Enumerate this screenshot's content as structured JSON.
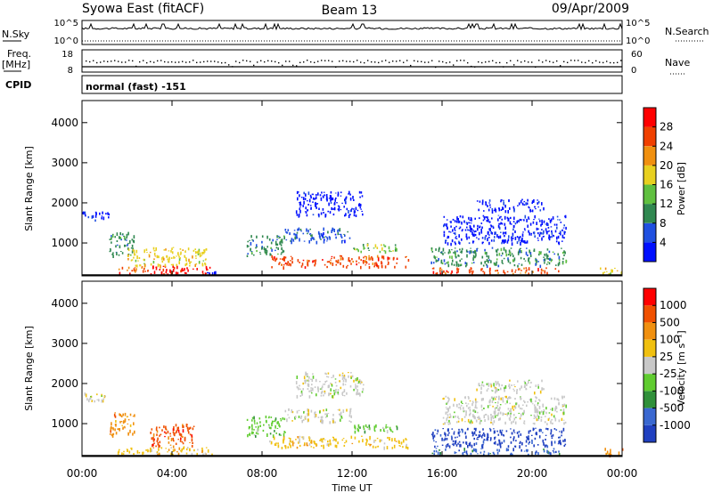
{
  "header": {
    "station": "Syowa East (fitACF)",
    "beam": "Beam 13",
    "date": "09/Apr/2009"
  },
  "status_panels": {
    "nsky_label": "N.Sky",
    "nsky_ticks": [
      "10^5",
      "10^0"
    ],
    "nsearch_label": "N.Search",
    "nsearch_ticks": [
      "10^5",
      "10^0"
    ],
    "freq_label_line1": "Freq.",
    "freq_label_line2": "[MHz]",
    "freq_ticks": [
      "18",
      "8"
    ],
    "nave_label": "Nave",
    "nave_ticks": [
      "60",
      "0"
    ],
    "cpid_label": "CPID",
    "cpid_text": "normal (fast) -151"
  },
  "chart_data": [
    {
      "type": "heatmap",
      "panel": "power",
      "ylabel": "Slant Range [km]",
      "y_ticks": [
        1000,
        2000,
        3000,
        4000
      ],
      "ylim": [
        180,
        4550
      ],
      "x_ticks": [
        "00:00",
        "04:00",
        "08:00",
        "12:00",
        "16:00",
        "20:00",
        "00:00"
      ],
      "xlim_hours": [
        0,
        24
      ],
      "colorbar": {
        "label": "Power [dB]",
        "levels": [
          "4",
          "8",
          "12",
          "16",
          "20",
          "24",
          "28"
        ],
        "colors": [
          "#0010ff",
          "#2050e0",
          "#308850",
          "#60c040",
          "#e8d020",
          "#f09010",
          "#f04000",
          "#ff0000"
        ]
      },
      "echo_regions": [
        {
          "t0": 0.0,
          "t1": 1.3,
          "r0": 1580,
          "r1": 1800,
          "level": 0
        },
        {
          "t0": 1.2,
          "t1": 2.3,
          "r0": 700,
          "r1": 1300,
          "level": 2
        },
        {
          "t0": 1.5,
          "t1": 3.0,
          "r0": 250,
          "r1": 420,
          "level": 6
        },
        {
          "t0": 3.0,
          "t1": 5.8,
          "r0": 240,
          "r1": 440,
          "level": 7
        },
        {
          "t0": 2.0,
          "t1": 5.5,
          "r0": 450,
          "r1": 900,
          "level": 4
        },
        {
          "t0": 5.5,
          "t1": 6.0,
          "r0": 230,
          "r1": 300,
          "level": 0
        },
        {
          "t0": 7.3,
          "t1": 9.0,
          "r0": 700,
          "r1": 1200,
          "level": 2
        },
        {
          "t0": 8.3,
          "t1": 14.5,
          "r0": 420,
          "r1": 700,
          "level": 6
        },
        {
          "t0": 9.0,
          "t1": 12.0,
          "r0": 1050,
          "r1": 1400,
          "level": 1
        },
        {
          "t0": 9.5,
          "t1": 12.5,
          "r0": 1700,
          "r1": 2300,
          "level": 0
        },
        {
          "t0": 12.0,
          "t1": 14.0,
          "r0": 800,
          "r1": 1000,
          "level": 3
        },
        {
          "t0": 15.5,
          "t1": 21.2,
          "r0": 250,
          "r1": 400,
          "level": 6
        },
        {
          "t0": 15.5,
          "t1": 21.5,
          "r0": 450,
          "r1": 900,
          "level": 2
        },
        {
          "t0": 16.0,
          "t1": 21.5,
          "r0": 1000,
          "r1": 1700,
          "level": 0
        },
        {
          "t0": 17.5,
          "t1": 20.5,
          "r0": 1800,
          "r1": 2100,
          "level": 0
        },
        {
          "t0": 23.0,
          "t1": 24.0,
          "r0": 230,
          "r1": 400,
          "level": 4
        }
      ]
    },
    {
      "type": "heatmap",
      "panel": "velocity",
      "ylabel": "Slant Range [km]",
      "y_ticks": [
        1000,
        2000,
        3000,
        4000
      ],
      "ylim": [
        180,
        4550
      ],
      "x_ticks": [
        "00:00",
        "04:00",
        "08:00",
        "12:00",
        "16:00",
        "20:00",
        "00:00"
      ],
      "xlim_hours": [
        0,
        24
      ],
      "xlabel": "Time UT",
      "colorbar": {
        "label": "Velocity [m s⁻¹]",
        "levels": [
          "1000",
          "500",
          "100",
          "25",
          "-25",
          "-100",
          "-500",
          "-1000"
        ],
        "colors": [
          "#2040c0",
          "#3a68d0",
          "#30903a",
          "#60cc30",
          "#c8c8c8",
          "#f0c010",
          "#f09010",
          "#f05000",
          "#ff0000"
        ]
      },
      "echo_regions": [
        {
          "t0": 0.0,
          "t1": 1.3,
          "r0": 1580,
          "r1": 1800,
          "level": 4
        },
        {
          "t0": 1.2,
          "t1": 2.3,
          "r0": 700,
          "r1": 1300,
          "level": 6
        },
        {
          "t0": 1.5,
          "t1": 3.0,
          "r0": 250,
          "r1": 420,
          "level": 5
        },
        {
          "t0": 3.0,
          "t1": 5.8,
          "r0": 240,
          "r1": 440,
          "level": 5
        },
        {
          "t0": 3.0,
          "t1": 5.0,
          "r0": 450,
          "r1": 1000,
          "level": 7
        },
        {
          "t0": 7.3,
          "t1": 9.0,
          "r0": 700,
          "r1": 1200,
          "level": 3
        },
        {
          "t0": 8.3,
          "t1": 14.5,
          "r0": 420,
          "r1": 700,
          "level": 5
        },
        {
          "t0": 9.0,
          "t1": 12.0,
          "r0": 1050,
          "r1": 1400,
          "level": 4
        },
        {
          "t0": 9.5,
          "t1": 12.5,
          "r0": 1700,
          "r1": 2300,
          "level": 4
        },
        {
          "t0": 12.0,
          "t1": 14.0,
          "r0": 800,
          "r1": 1000,
          "level": 3
        },
        {
          "t0": 15.5,
          "t1": 21.2,
          "r0": 250,
          "r1": 400,
          "level": 1
        },
        {
          "t0": 15.5,
          "t1": 21.5,
          "r0": 450,
          "r1": 900,
          "level": 0
        },
        {
          "t0": 16.0,
          "t1": 21.5,
          "r0": 1000,
          "r1": 1700,
          "level": 4
        },
        {
          "t0": 17.5,
          "t1": 20.5,
          "r0": 1800,
          "r1": 2100,
          "level": 4
        },
        {
          "t0": 23.0,
          "t1": 24.0,
          "r0": 230,
          "r1": 400,
          "level": 6
        }
      ]
    }
  ]
}
